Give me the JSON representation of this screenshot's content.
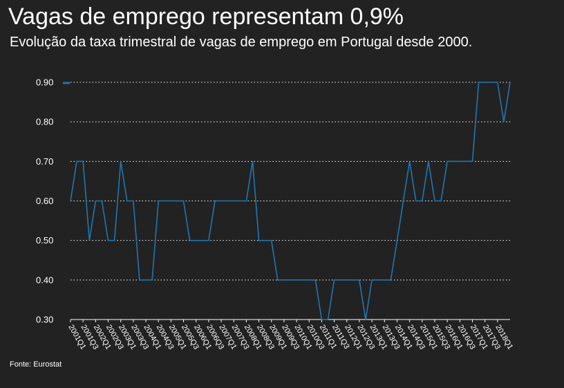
{
  "header": {
    "title": "Vagas de emprego representam 0,9%",
    "subtitle": "Evolução da taxa trimestral de vagas de emprego em Portugal desde 2000."
  },
  "footer": {
    "source": "Fonte: Eurostat"
  },
  "colors": {
    "background": "#222222",
    "line": "#1f77b4",
    "grid": "#ffffff",
    "text": "#ffffff"
  },
  "chart_data": {
    "type": "line",
    "title": "Vagas de emprego representam 0,9%",
    "subtitle": "Evolução da taxa trimestral de vagas de emprego em Portugal desde 2000.",
    "xlabel": "",
    "ylabel": "",
    "ylim": [
      0.3,
      0.9
    ],
    "yticks": [
      "0.90",
      "0.80",
      "0.70",
      "0.60",
      "0.50",
      "0.40",
      "0.30"
    ],
    "grid": "horizontal dotted",
    "legend": "top-left",
    "xticks": [
      "2001Q1",
      "2001Q3",
      "2002Q1",
      "2002Q3",
      "2003Q1",
      "2003Q3",
      "2004Q1",
      "2004Q3",
      "2005Q1",
      "2005Q3",
      "2006Q1",
      "2006Q3",
      "2007Q1",
      "2007Q3",
      "2008Q1",
      "2008Q3",
      "2009Q1",
      "2009Q3",
      "2010Q1",
      "2010Q3",
      "2011Q1",
      "2011Q3",
      "2012Q1",
      "2012Q3",
      "2013Q1",
      "2013Q3",
      "2014Q1",
      "2014Q3",
      "2015Q1",
      "2015Q3",
      "2016Q1",
      "2016Q3",
      "2017Q1",
      "2017Q3",
      "2018Q1"
    ],
    "x": [
      "2001Q1",
      "2001Q2",
      "2001Q3",
      "2001Q4",
      "2002Q1",
      "2002Q2",
      "2002Q3",
      "2002Q4",
      "2003Q1",
      "2003Q2",
      "2003Q3",
      "2003Q4",
      "2004Q1",
      "2004Q2",
      "2004Q3",
      "2004Q4",
      "2005Q1",
      "2005Q2",
      "2005Q3",
      "2005Q4",
      "2006Q1",
      "2006Q2",
      "2006Q3",
      "2006Q4",
      "2007Q1",
      "2007Q2",
      "2007Q3",
      "2007Q4",
      "2008Q1",
      "2008Q2",
      "2008Q3",
      "2008Q4",
      "2009Q1",
      "2009Q2",
      "2009Q3",
      "2009Q4",
      "2010Q1",
      "2010Q2",
      "2010Q3",
      "2010Q4",
      "2011Q1",
      "2011Q2",
      "2011Q3",
      "2011Q4",
      "2012Q1",
      "2012Q2",
      "2012Q3",
      "2012Q4",
      "2013Q1",
      "2013Q2",
      "2013Q3",
      "2013Q4",
      "2014Q1",
      "2014Q2",
      "2014Q3",
      "2014Q4",
      "2015Q1",
      "2015Q2",
      "2015Q3",
      "2015Q4",
      "2016Q1",
      "2016Q2",
      "2016Q3",
      "2016Q4",
      "2017Q1",
      "2017Q2",
      "2017Q3",
      "2017Q4",
      "2018Q1",
      "2018Q2",
      "2018Q3"
    ],
    "series": [
      {
        "name": "",
        "values": [
          0.6,
          0.7,
          0.7,
          0.5,
          0.6,
          0.6,
          0.5,
          0.5,
          0.7,
          0.6,
          0.6,
          0.4,
          0.4,
          0.4,
          0.6,
          0.6,
          0.6,
          0.6,
          0.6,
          0.5,
          0.5,
          0.5,
          0.5,
          0.6,
          0.6,
          0.6,
          0.6,
          0.6,
          0.6,
          0.7,
          0.5,
          0.5,
          0.5,
          0.4,
          0.4,
          0.4,
          0.4,
          0.4,
          0.4,
          0.4,
          0.3,
          0.3,
          0.4,
          0.4,
          0.4,
          0.4,
          0.4,
          0.3,
          0.4,
          0.4,
          0.4,
          0.4,
          0.5,
          0.6,
          0.7,
          0.6,
          0.6,
          0.7,
          0.6,
          0.6,
          0.7,
          0.7,
          0.7,
          0.7,
          0.7,
          0.9,
          0.9,
          0.9,
          0.9,
          0.8,
          0.9
        ]
      }
    ]
  }
}
